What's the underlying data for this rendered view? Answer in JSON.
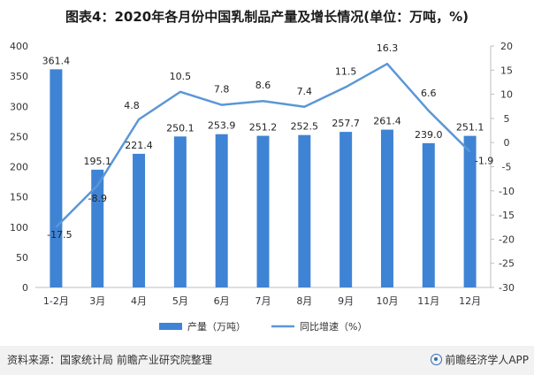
{
  "title": "图表4：2020年各月份中国乳制品产量及增长情况(单位：万吨，%)",
  "footer": {
    "source": "资料来源：国家统计局 前瞻产业研究院整理",
    "brand": "前瞻经济学人APP"
  },
  "colors": {
    "bar": "#3f83d4",
    "line": "#5b97d6"
  },
  "chart_data": {
    "type": "bar",
    "categories": [
      "1-2月",
      "3月",
      "4月",
      "5月",
      "6月",
      "7月",
      "8月",
      "9月",
      "10月",
      "11月",
      "12月"
    ],
    "series": [
      {
        "name": "产量（万吨）",
        "type": "bar",
        "axis": "left",
        "values": [
          361.4,
          195.1,
          221.4,
          250.1,
          253.9,
          251.2,
          252.5,
          257.7,
          261.4,
          239.0,
          251.1
        ],
        "labels": [
          "361.4",
          "195.1",
          "221.4",
          "250.1",
          "253.9",
          "251.2",
          "252.5",
          "257.7",
          "261.4",
          "239.0",
          "251.1"
        ]
      },
      {
        "name": "同比增速（%）",
        "type": "line",
        "axis": "right",
        "values": [
          -17.5,
          -8.9,
          4.8,
          10.5,
          7.8,
          8.6,
          7.4,
          11.5,
          16.3,
          6.6,
          -1.9
        ],
        "labels": [
          "-17.5",
          "-8.9",
          "4.8",
          "10.5",
          "7.8",
          "8.6",
          "7.4",
          "11.5",
          "16.3",
          "6.6",
          "-1.9"
        ]
      }
    ],
    "y_left": {
      "min": 0,
      "max": 400,
      "ticks": [
        "0",
        "50",
        "100",
        "150",
        "200",
        "250",
        "300",
        "350",
        "400"
      ]
    },
    "y_right": {
      "min": -30,
      "max": 20,
      "ticks": [
        "-30",
        "-25",
        "-20",
        "-15",
        "-10",
        "-5",
        "0",
        "5",
        "10",
        "15",
        "20"
      ]
    },
    "grid": false,
    "legend_position": "bottom"
  }
}
